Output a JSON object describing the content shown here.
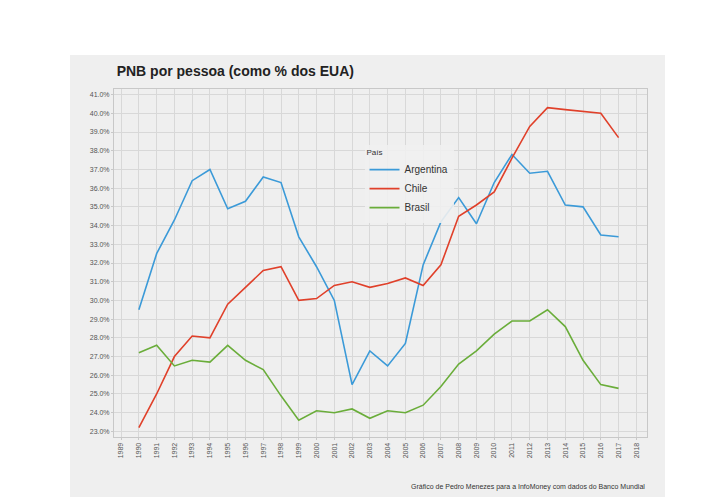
{
  "chart_data": {
    "type": "line",
    "title": "PNB por pessoa (como % dos EUA)",
    "legend_title": "País",
    "annotations": [
      "Gráfico de Pedro Menezes para a InfoMoney com dados do Banco Mundial"
    ],
    "x": [
      1990,
      1991,
      1992,
      1993,
      1994,
      1995,
      1996,
      1997,
      1998,
      1999,
      2000,
      2001,
      2002,
      2003,
      2004,
      2005,
      2006,
      2007,
      2008,
      2009,
      2010,
      2011,
      2012,
      2013,
      2014,
      2015,
      2016,
      2017
    ],
    "series": [
      {
        "name": "Argentina",
        "color": "#3b9ad8",
        "values": [
          29.5,
          32.5,
          34.3,
          36.4,
          37.0,
          34.9,
          35.3,
          36.6,
          36.3,
          33.4,
          31.8,
          30.0,
          25.5,
          27.3,
          26.5,
          27.7,
          31.9,
          34.2,
          35.5,
          34.1,
          36.3,
          37.8,
          36.8,
          36.9,
          35.1,
          35.0,
          33.5,
          33.4
        ]
      },
      {
        "name": "Chile",
        "color": "#e0402a",
        "values": [
          23.2,
          25.0,
          27.0,
          28.1,
          28.0,
          29.8,
          30.7,
          31.6,
          31.8,
          30.0,
          30.1,
          30.8,
          31.0,
          30.7,
          30.9,
          31.2,
          30.8,
          31.9,
          34.5,
          35.1,
          35.8,
          37.6,
          39.3,
          40.3,
          40.2,
          40.1,
          40.0,
          38.7
        ]
      },
      {
        "name": "Brasil",
        "color": "#6aad3a",
        "values": [
          27.2,
          27.6,
          26.5,
          26.8,
          26.7,
          27.6,
          26.8,
          26.3,
          24.9,
          23.6,
          24.1,
          24.0,
          24.2,
          23.7,
          24.1,
          24.0,
          24.4,
          25.4,
          26.6,
          27.3,
          28.2,
          28.9,
          28.9,
          29.5,
          28.6,
          26.8,
          25.5,
          25.3
        ]
      }
    ],
    "xlim": [
      1988.6,
      2018.6
    ],
    "xticks": [
      1989,
      1990,
      1991,
      1992,
      1993,
      1994,
      1995,
      1996,
      1997,
      1998,
      1999,
      2000,
      2001,
      2002,
      2003,
      2004,
      2005,
      2006,
      2007,
      2008,
      2009,
      2010,
      2011,
      2012,
      2013,
      2014,
      2015,
      2016,
      2017,
      2018
    ],
    "ylim": [
      22.7,
      41.3
    ],
    "yticks": [
      {
        "value": 23,
        "label": "23.0%"
      },
      {
        "value": 24,
        "label": "24.0%"
      },
      {
        "value": 25,
        "label": "25.0%"
      },
      {
        "value": 26,
        "label": "26.0%"
      },
      {
        "value": 27,
        "label": "27.0%"
      },
      {
        "value": 28,
        "label": "28.0%"
      },
      {
        "value": 29,
        "label": "29.0%"
      },
      {
        "value": 30,
        "label": "30.0%"
      },
      {
        "value": 31,
        "label": "31.0%"
      },
      {
        "value": 32,
        "label": "32.0%"
      },
      {
        "value": 33,
        "label": "33.0%"
      },
      {
        "value": 34,
        "label": "34.0%"
      },
      {
        "value": 35,
        "label": "35.0%"
      },
      {
        "value": 36,
        "label": "36.0%"
      },
      {
        "value": 37,
        "label": "37.0%"
      },
      {
        "value": 38,
        "label": "38.0%"
      },
      {
        "value": 39,
        "label": "39.0%"
      },
      {
        "value": 40,
        "label": "40.0%"
      },
      {
        "value": 41,
        "label": "41.0%"
      }
    ],
    "grid": true,
    "legend": "top"
  }
}
